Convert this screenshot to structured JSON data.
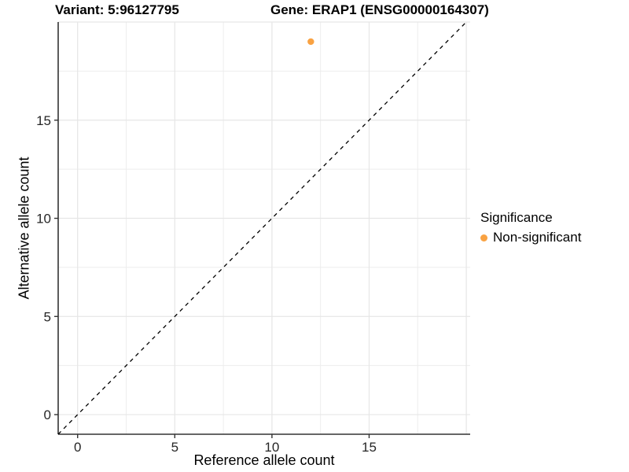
{
  "titles": {
    "variant": "Variant: 5:96127795",
    "gene": "Gene: ERAP1 (ENSG00000164307)"
  },
  "legend": {
    "title": "Significance",
    "items": [
      {
        "label": "Non-significant",
        "color": "#F9A242"
      }
    ]
  },
  "chart_data": {
    "type": "scatter",
    "title_left": "Variant: 5:96127795",
    "title_right": "Gene: ERAP1 (ENSG00000164307)",
    "xlabel": "Reference allele count",
    "ylabel": "Alternative allele count",
    "series": [
      {
        "name": "Non-significant",
        "color": "#F9A242",
        "points": [
          {
            "x": 12,
            "y": 19
          }
        ]
      }
    ],
    "reference_line": {
      "type": "identity-y-equals-x",
      "style": "dashed",
      "color": "#000000"
    },
    "xlim": [
      -1,
      20.2
    ],
    "ylim": [
      -1,
      20
    ],
    "x_ticks": [
      0,
      5,
      10,
      15
    ],
    "y_ticks": [
      0,
      5,
      10,
      15
    ],
    "minor_grid_step": 2.5,
    "major_grid_step": 5,
    "grid": "major+minor",
    "legend_position": "right",
    "colors": {
      "background": "#FFFFFF",
      "grid_major": "#E6E6E6",
      "grid_minor": "#EDEDED",
      "axis_line": "#333333",
      "tick_label": "#262626",
      "point": "#F9A242",
      "identity_line": "#000000"
    }
  }
}
